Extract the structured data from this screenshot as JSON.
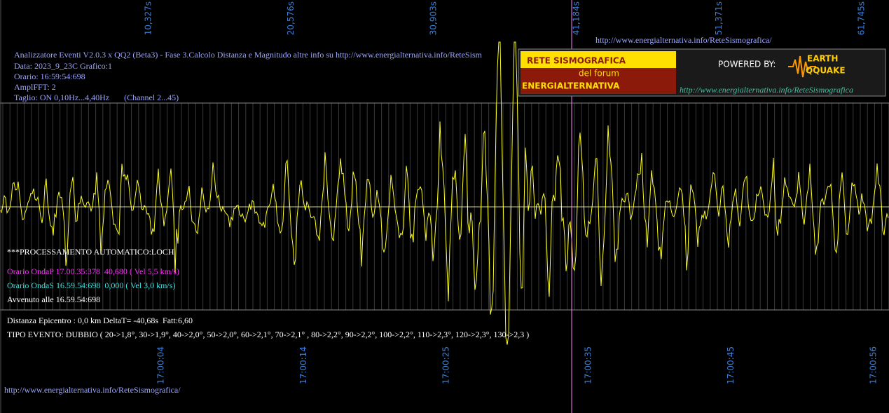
{
  "header": {
    "url": "http://www.energialternativa.info/ReteSismografica/",
    "lines": [
      "Analizzatore Eventi V2.0.3 x QQ2 (Beta3) - Fase 3.Calcolo Distanza e Magnitudo altre info su http://www.energialternativa.info/ReteSism",
      "Data: 2023_9_23C Grafico:1",
      "Orario: 16:59:54:698",
      "AmplFFT: 2",
      "Taglio: ON 0,10Hz...4,40Hz       (Channel 2...45)"
    ]
  },
  "top_time_labels": [
    "10,327s",
    "20,576s",
    "30,903s",
    "41,184s",
    "51,371s",
    "61,745s"
  ],
  "bottom_time_labels": [
    "17:00:04",
    "17:00:14",
    "17:00:25",
    "17:00:35",
    "17:00:45",
    "17:00:56"
  ],
  "processing": {
    "title": "***PROCESSAMENTO AUTOMATICO:LOCH",
    "onda_p": "Orario OndaP 17.00.35:378  40,680 ( Vel 5,5 km/s)",
    "onda_s": "Orario OndaS 16.59.54:698  0,000 ( Vel 3,0 km/s)",
    "avvenuto": "Avvenuto alle 16.59.54:698",
    "distanza": "Distanza Epicentro : 0,0 km DeltaT= -40,68s  Fatt:6,60",
    "tipo": "TIPO EVENTO: DUBBIO ( 20->1,8°, 30->1,9°, 40->2,0°, 50->2,0°, 60->2,1°, 70->2,1° , 80->2,2°, 90->2,2°, 100->2,2°, 110->2,3°, 120->2,3°, 130->2,3 )"
  },
  "footer_url": "http://www.energialternativa.info/ReteSismografica/",
  "logo": {
    "title": "RETE SISMOGRAFICA",
    "subtitle": "del forum",
    "name": "ENERGIALTERNATIVA",
    "powered": "POWERED BY:",
    "earth": "EARTH",
    "quake": "QQUAKE",
    "url": "http://www.energialternativa.info/ReteSismografica"
  }
}
